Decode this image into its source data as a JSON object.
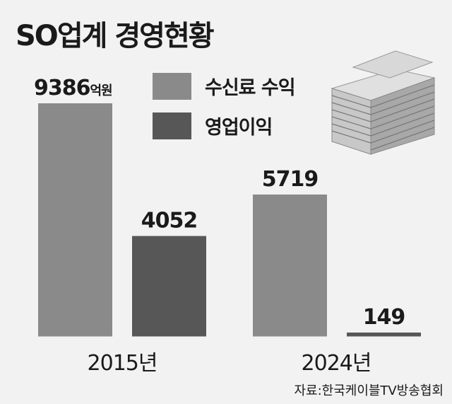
{
  "title": "SO업계 경영현황",
  "unit": "억원",
  "source": "자료:한국케이블TV방송협회",
  "colors": {
    "background": "#f2f2f2",
    "revenue": "#8a8a8a",
    "profit": "#575757",
    "text": "#1a1a1a"
  },
  "icon": "building-icon",
  "chart_data": {
    "type": "bar",
    "title": "SO업계 경영현황",
    "xlabel": "",
    "ylabel": "",
    "unit": "억원",
    "categories": [
      "2015년",
      "2024년"
    ],
    "series": [
      {
        "name": "수신료 수익",
        "values": [
          9386,
          5719
        ]
      },
      {
        "name": "영업이익",
        "values": [
          4052,
          149
        ]
      }
    ],
    "ylim": [
      0,
      9386
    ],
    "grid": false,
    "legend": "top-center"
  }
}
